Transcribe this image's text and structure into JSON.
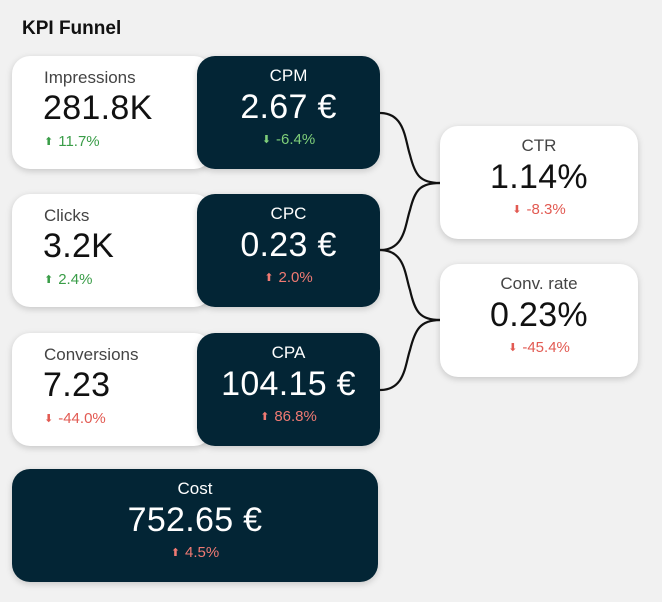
{
  "title": "KPI Funnel",
  "impressions": {
    "label": "Impressions",
    "value": "281.8K",
    "delta": "11.7%",
    "direction": "up",
    "sentiment": "good"
  },
  "cpm": {
    "label": "CPM",
    "value": "2.67 €",
    "delta": "-6.4%",
    "direction": "down",
    "sentiment": "good"
  },
  "clicks": {
    "label": "Clicks",
    "value": "3.2K",
    "delta": "2.4%",
    "direction": "up",
    "sentiment": "good"
  },
  "cpc": {
    "label": "CPC",
    "value": "0.23 €",
    "delta": "2.0%",
    "direction": "up",
    "sentiment": "bad"
  },
  "conversions": {
    "label": "Conversions",
    "value": "7.23",
    "delta": "-44.0%",
    "direction": "down",
    "sentiment": "bad"
  },
  "cpa": {
    "label": "CPA",
    "value": "104.15 €",
    "delta": "86.8%",
    "direction": "up",
    "sentiment": "bad"
  },
  "ctr": {
    "label": "CTR",
    "value": "1.14%",
    "delta": "-8.3%",
    "direction": "down",
    "sentiment": "bad"
  },
  "conv_rate": {
    "label": "Conv. rate",
    "value": "0.23%",
    "delta": "-45.4%",
    "direction": "down",
    "sentiment": "bad"
  },
  "cost": {
    "label": "Cost",
    "value": "752.65 €",
    "delta": "4.5%",
    "direction": "up",
    "sentiment": "bad"
  },
  "colors": {
    "dark_card": "#032535",
    "good": "#3a9d48",
    "bad": "#e25a52",
    "background": "#f1f1f1"
  }
}
